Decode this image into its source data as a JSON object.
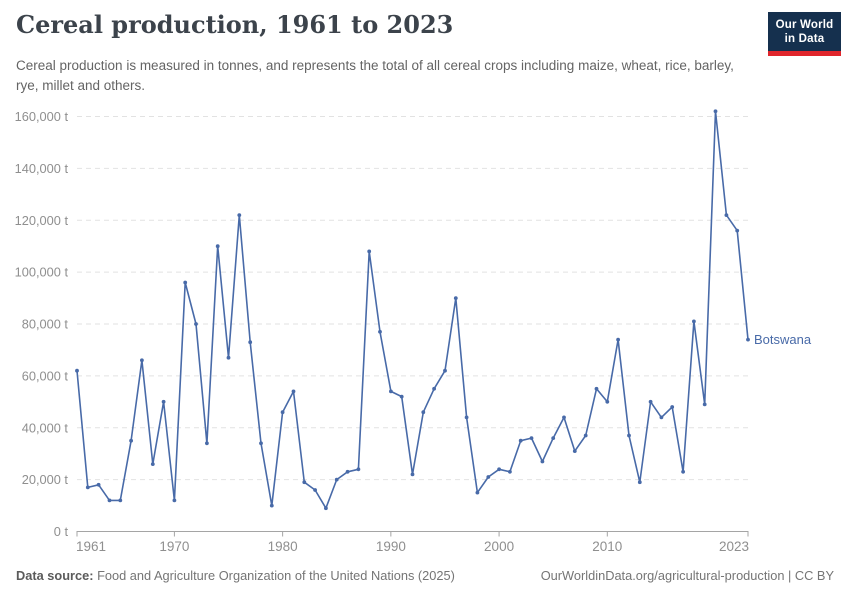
{
  "header": {
    "title": "Cereal production, 1961 to 2023",
    "subtitle": "Cereal production is measured in tonnes, and represents the total of all cereal crops including maize, wheat, rice, barley, rye, millet and others."
  },
  "logo": {
    "line1": "Our World",
    "line2": "in Data"
  },
  "chart_data": {
    "type": "line",
    "title": "Cereal production, 1961 to 2023",
    "unit": "t",
    "x": [
      1961,
      1962,
      1963,
      1964,
      1965,
      1966,
      1967,
      1968,
      1969,
      1970,
      1971,
      1972,
      1973,
      1974,
      1975,
      1976,
      1977,
      1978,
      1979,
      1980,
      1981,
      1982,
      1983,
      1984,
      1985,
      1986,
      1987,
      1988,
      1989,
      1990,
      1991,
      1992,
      1993,
      1994,
      1995,
      1996,
      1997,
      1998,
      1999,
      2000,
      2001,
      2002,
      2003,
      2004,
      2005,
      2006,
      2007,
      2008,
      2009,
      2010,
      2011,
      2012,
      2013,
      2014,
      2015,
      2016,
      2017,
      2018,
      2019,
      2020,
      2021,
      2022,
      2023
    ],
    "series": [
      {
        "name": "Botswana",
        "values": [
          62000,
          17000,
          18000,
          12000,
          12000,
          35000,
          66000,
          26000,
          50000,
          12000,
          96000,
          80000,
          34000,
          110000,
          67000,
          122000,
          73000,
          34000,
          10000,
          46000,
          54000,
          19000,
          16000,
          9000,
          20000,
          23000,
          24000,
          108000,
          77000,
          54000,
          52000,
          22000,
          46000,
          55000,
          62000,
          90000,
          44000,
          15000,
          21000,
          24000,
          23000,
          35000,
          36000,
          27000,
          36000,
          44000,
          31000,
          37000,
          55000,
          50000,
          74000,
          37000,
          19000,
          50000,
          44000,
          48000,
          23000,
          81000,
          49000,
          162000,
          122000,
          116000,
          74000
        ]
      }
    ],
    "ylim": [
      0,
      160000
    ],
    "yticks": [
      0,
      20000,
      40000,
      60000,
      80000,
      100000,
      120000,
      140000,
      160000
    ],
    "ytick_labels": [
      "0 t",
      "20,000 t",
      "40,000 t",
      "60,000 t",
      "80,000 t",
      "100,000 t",
      "120,000 t",
      "140,000 t",
      "160,000 t"
    ],
    "xlim": [
      1961,
      2023
    ],
    "xticks": [
      1961,
      1970,
      1980,
      1990,
      2000,
      2010,
      2023
    ],
    "xtick_labels": [
      "1961",
      "1970",
      "1980",
      "1990",
      "2000",
      "2010",
      "2023"
    ],
    "grid": "horizontal-dashed",
    "legend": "series-label-at-line-end"
  },
  "end_label": "Botswana",
  "footer": {
    "source_label": "Data source:",
    "source_text": " Food and Agriculture Organization of the United Nations (2025)",
    "credit": "OurWorldinData.org/agricultural-production | CC BY"
  },
  "colors": {
    "line": "#486AA8",
    "grid": "#e2e2e2",
    "axis": "#a5a5a5",
    "tick_label": "#8f8f8f",
    "title": "#3C434B",
    "subtitle": "#646464",
    "footer": "#757575",
    "logo_bg": "#15304E",
    "logo_red": "#E0262C"
  }
}
